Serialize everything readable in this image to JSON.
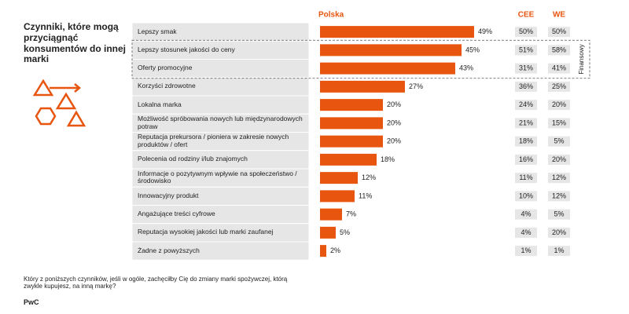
{
  "chart_data": {
    "type": "bar",
    "title": "Czynniki, które mogą przyciągnąć konsumentów do innej marki",
    "categories": [
      "Lepszy smak",
      "Lepszy stosunek jakości do ceny",
      "Oferty promocyjne",
      "Korzyści zdrowotne",
      "Lokalna marka",
      "Możliwość spróbowania nowych lub międzynarodowych potraw",
      "Reputacja prekursora / pioniera w zakresie nowych produktów / ofert",
      "Polecenia od rodziny i/lub znajomych",
      "Informacje o pozytywnym wpływie na społeczeństwo / środowisko",
      "Innowacyjny produkt",
      "Angażujące treści cyfrowe",
      "Reputacja wysokiej jakości lub marki zaufanej",
      "Żadne z powyższych"
    ],
    "series": [
      {
        "name": "Polska",
        "color": "#e8550f",
        "values": [
          49,
          45,
          43,
          27,
          20,
          20,
          20,
          18,
          12,
          11,
          7,
          5,
          2
        ],
        "value_labels": [
          "49%",
          "45%",
          "43%",
          "27%",
          "20%",
          "20%",
          "20%",
          "18%",
          "12%",
          "11%",
          "7%",
          "5%",
          "2%"
        ]
      },
      {
        "name": "CEE",
        "color": "#e8550f",
        "values": [
          50,
          51,
          31,
          36,
          24,
          21,
          18,
          16,
          11,
          10,
          4,
          4,
          1
        ],
        "value_labels": [
          "50%",
          "51%",
          "31%",
          "36%",
          "24%",
          "21%",
          "18%",
          "16%",
          "11%",
          "10%",
          "4%",
          "4%",
          "1%"
        ]
      },
      {
        "name": "WE",
        "color": "#e8550f",
        "values": [
          50,
          58,
          41,
          25,
          20,
          15,
          5,
          20,
          12,
          12,
          5,
          20,
          1
        ],
        "value_labels": [
          "50%",
          "58%",
          "41%",
          "25%",
          "20%",
          "15%",
          "5%",
          "20%",
          "12%",
          "12%",
          "5%",
          "20%",
          "1%"
        ]
      }
    ],
    "group_label": "Finansowy",
    "footnote": "Który z poniższych czynników, jeśli w ogóle, zachęciłby Cię do zmiany marki spożywczej, którą zwykle kupujesz, na inną markę?",
    "source": "PwC"
  }
}
